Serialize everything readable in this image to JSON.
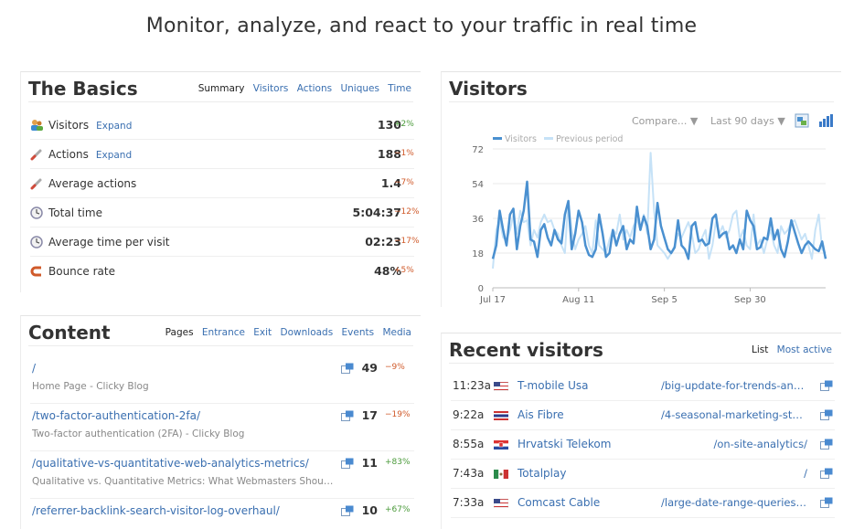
{
  "headline": "Monitor, analyze, and react to your traffic in real time",
  "basics": {
    "title": "The Basics",
    "tabs": [
      {
        "label": "Summary",
        "active": true
      },
      {
        "label": "Visitors",
        "active": false
      },
      {
        "label": "Actions",
        "active": false
      },
      {
        "label": "Uniques",
        "active": false
      },
      {
        "label": "Time",
        "active": false
      }
    ],
    "rows": [
      {
        "icon": "visitors-icon",
        "label": "Visitors",
        "expand": "Expand",
        "value": "130",
        "change": "+2%",
        "dir": "pos"
      },
      {
        "icon": "actions-icon",
        "label": "Actions",
        "expand": "Expand",
        "value": "188",
        "change": "−1%",
        "dir": "neg"
      },
      {
        "icon": "average-actions-icon",
        "label": "Average actions",
        "expand": "",
        "value": "1.4",
        "change": "−7%",
        "dir": "neg"
      },
      {
        "icon": "clock-icon",
        "label": "Total time",
        "expand": "",
        "value": "5:04:37",
        "change": "−12%",
        "dir": "neg"
      },
      {
        "icon": "clock-icon",
        "label": "Average time per visit",
        "expand": "",
        "value": "02:23",
        "change": "−17%",
        "dir": "neg"
      },
      {
        "icon": "bounce-icon",
        "label": "Bounce rate",
        "expand": "",
        "value": "48%",
        "change": "+5%",
        "dir": "neg"
      }
    ]
  },
  "visitors_panel": {
    "title": "Visitors",
    "compare_label": "Compare...",
    "range_label": "Last 90 days",
    "colors": {
      "current": "#4a90d0",
      "previous": "#c6e2f7"
    }
  },
  "chart_data": {
    "type": "line",
    "legend": [
      "Visitors",
      "Previous period"
    ],
    "legend_position": "top-left",
    "y_ticks": [
      "0",
      "18",
      "36",
      "54",
      "72"
    ],
    "ylim": [
      0,
      72
    ],
    "x_ticks": [
      {
        "label": "Jul 17",
        "index": 0
      },
      {
        "label": "Aug 11",
        "index": 25
      },
      {
        "label": "Sep 5",
        "index": 50
      },
      {
        "label": "Sep 30",
        "index": 75
      }
    ],
    "grid": true,
    "series": [
      {
        "name": "Visitors",
        "values": [
          15,
          22,
          40,
          30,
          22,
          38,
          41,
          20,
          32,
          40,
          55,
          25,
          24,
          16,
          30,
          33,
          26,
          22,
          30,
          25,
          23,
          38,
          45,
          20,
          28,
          40,
          34,
          22,
          17,
          16,
          20,
          38,
          28,
          16,
          18,
          30,
          22,
          28,
          32,
          20,
          25,
          23,
          42,
          30,
          37,
          32,
          20,
          25,
          44,
          32,
          26,
          20,
          18,
          21,
          35,
          22,
          20,
          15,
          32,
          34,
          24,
          25,
          22,
          23,
          36,
          38,
          26,
          28,
          29,
          20,
          22,
          18,
          25,
          20,
          40,
          35,
          32,
          20,
          21,
          26,
          25,
          36,
          25,
          30,
          20,
          16,
          24,
          35,
          29,
          23,
          18,
          22,
          24,
          22,
          20,
          19,
          24,
          15
        ]
      },
      {
        "name": "Previous period",
        "values": [
          10,
          30,
          35,
          26,
          25,
          30,
          38,
          28,
          40,
          34,
          35,
          22,
          30,
          26,
          34,
          38,
          34,
          35,
          30,
          28,
          22,
          18,
          45,
          30,
          20,
          25,
          28,
          32,
          22,
          18,
          35,
          22,
          20,
          18,
          25,
          30,
          28,
          38,
          25,
          30,
          26,
          32,
          35,
          30,
          38,
          28,
          70,
          40,
          22,
          20,
          18,
          15,
          18,
          22,
          28,
          26,
          30,
          34,
          28,
          18,
          20,
          26,
          30,
          15,
          22,
          34,
          28,
          32,
          26,
          30,
          38,
          40,
          25,
          30,
          22,
          20,
          38,
          22,
          25,
          18,
          25,
          30,
          22,
          18,
          32,
          28,
          30,
          34,
          35,
          30,
          25,
          28,
          22,
          15,
          30,
          38,
          20,
          18
        ]
      }
    ]
  },
  "content": {
    "title": "Content",
    "tabs": [
      {
        "label": "Pages",
        "active": true
      },
      {
        "label": "Entrance",
        "active": false
      },
      {
        "label": "Exit",
        "active": false
      },
      {
        "label": "Downloads",
        "active": false
      },
      {
        "label": "Events",
        "active": false
      },
      {
        "label": "Media",
        "active": false
      }
    ],
    "rows": [
      {
        "path": "/",
        "title": "Home Page - Clicky Blog",
        "count": "49",
        "change": "−9%",
        "dir": "neg"
      },
      {
        "path": "/two-factor-authentication-2fa/",
        "title": "Two-factor authentication (2FA) - Clicky Blog",
        "count": "17",
        "change": "−19%",
        "dir": "neg"
      },
      {
        "path": "/qualitative-vs-quantitative-web-analytics-metrics/",
        "title": "Qualitative vs. Quantitative Metrics: What Webmasters Should...",
        "count": "11",
        "change": "+83%",
        "dir": "pos"
      },
      {
        "path": "/referrer-backlink-search-visitor-log-overhaul/",
        "title": "",
        "count": "10",
        "change": "+67%",
        "dir": "pos"
      }
    ]
  },
  "recent": {
    "title": "Recent visitors",
    "tabs": [
      {
        "label": "List",
        "active": true
      },
      {
        "label": "Most active",
        "active": false
      }
    ],
    "rows": [
      {
        "time": "11:23a",
        "flag": "us-flag-icon",
        "org": "T-mobile Usa",
        "url": "/big-update-for-trends-and-..."
      },
      {
        "time": "9:22a",
        "flag": "th-flag-icon",
        "org": "Ais Fibre",
        "url": "/4-seasonal-marketing-stats..."
      },
      {
        "time": "8:55a",
        "flag": "hr-flag-icon",
        "org": "Hrvatski Telekom",
        "url": "/on-site-analytics/"
      },
      {
        "time": "7:43a",
        "flag": "mx-flag-icon",
        "org": "Totalplay",
        "url": "/"
      },
      {
        "time": "7:33a",
        "flag": "us-flag-icon",
        "org": "Comcast Cable",
        "url": "/large-date-range-queries-n..."
      }
    ]
  }
}
